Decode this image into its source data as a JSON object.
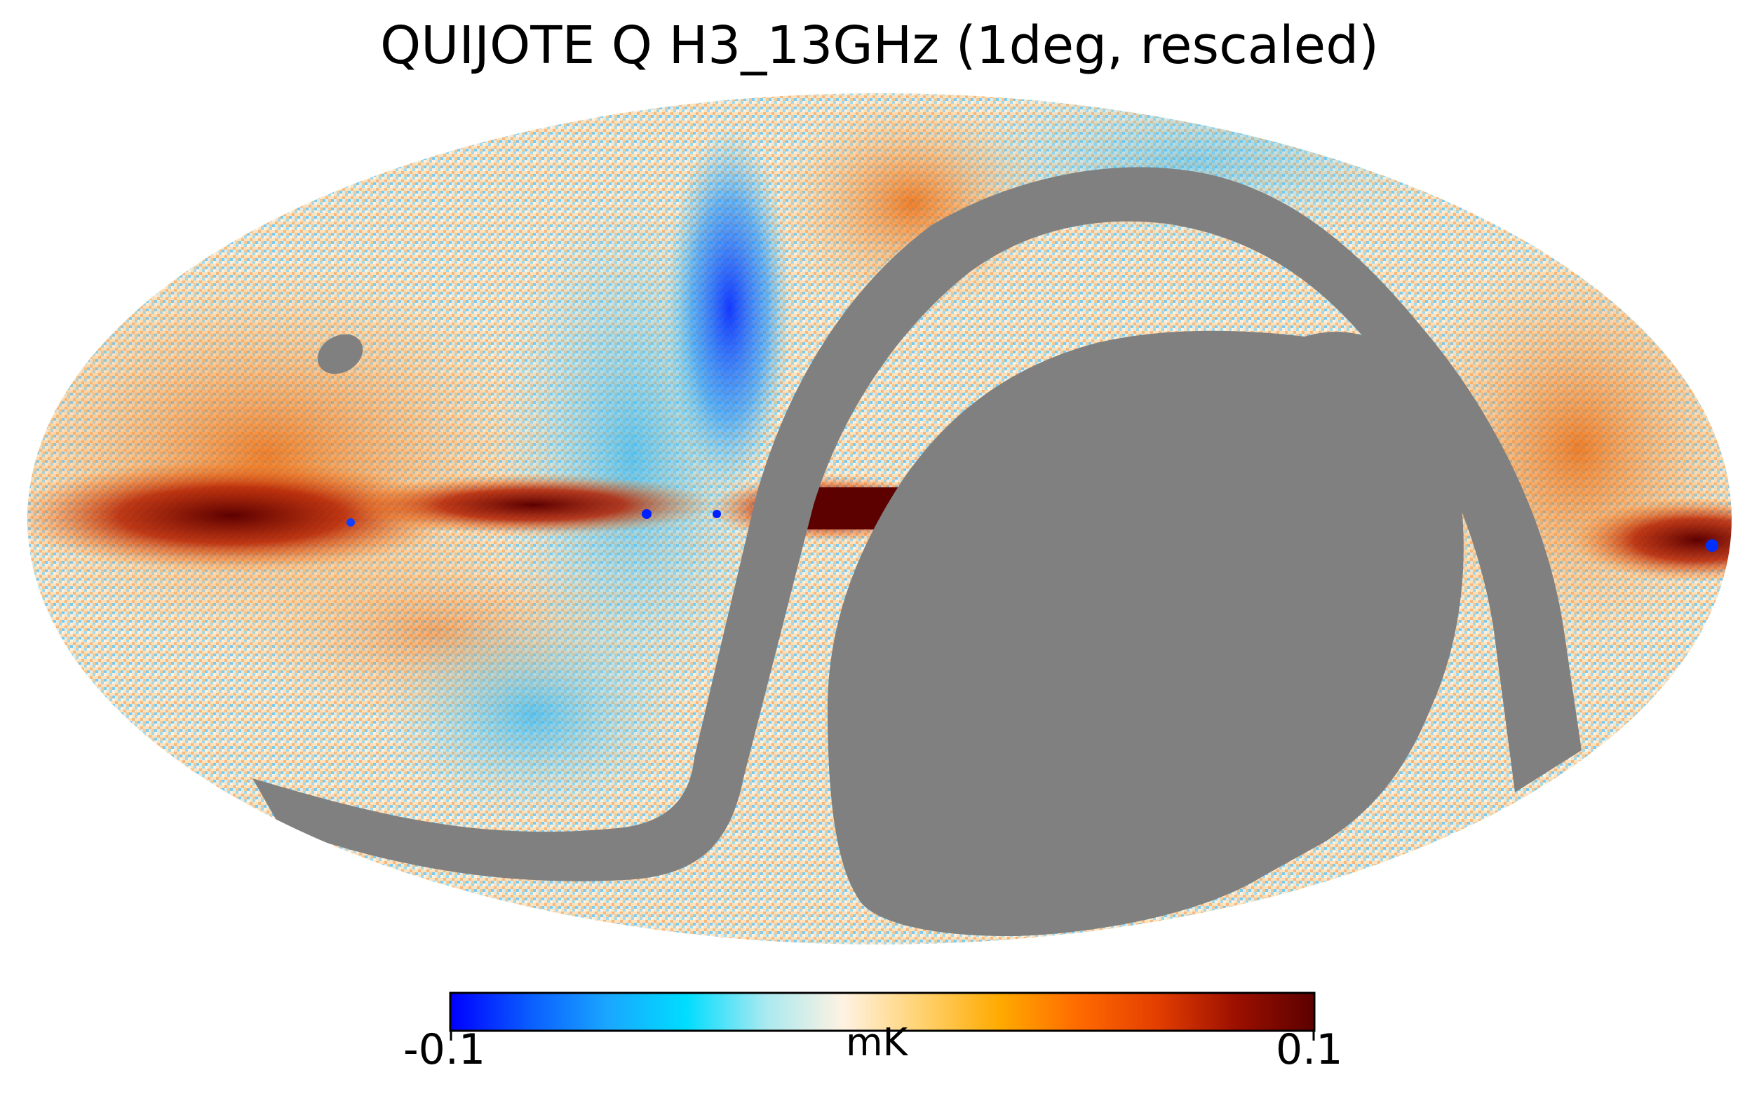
{
  "title": "QUIJOTE Q H3_13GHz (1deg, rescaled)",
  "colorbar": {
    "min_label": "-0.1",
    "max_label": "0.1",
    "unit": "mK",
    "min_value": -0.1,
    "max_value": 0.1,
    "colormap": [
      "#0000ff",
      "#0a5cff",
      "#1aa6ff",
      "#00ddff",
      "#a8e9f0",
      "#fff2e2",
      "#ffd270",
      "#ffaa00",
      "#ff6a00",
      "#e43e00",
      "#9c1000",
      "#5c0000"
    ]
  },
  "map": {
    "projection": "mollweide",
    "masked_color": "#808080",
    "dominant_signal": "galactic-plane emission (positive, dark red) along the equator",
    "strong_negative_region": "blue lobe above the plane left of center",
    "point_sources": "small blue dots along the galactic plane"
  }
}
